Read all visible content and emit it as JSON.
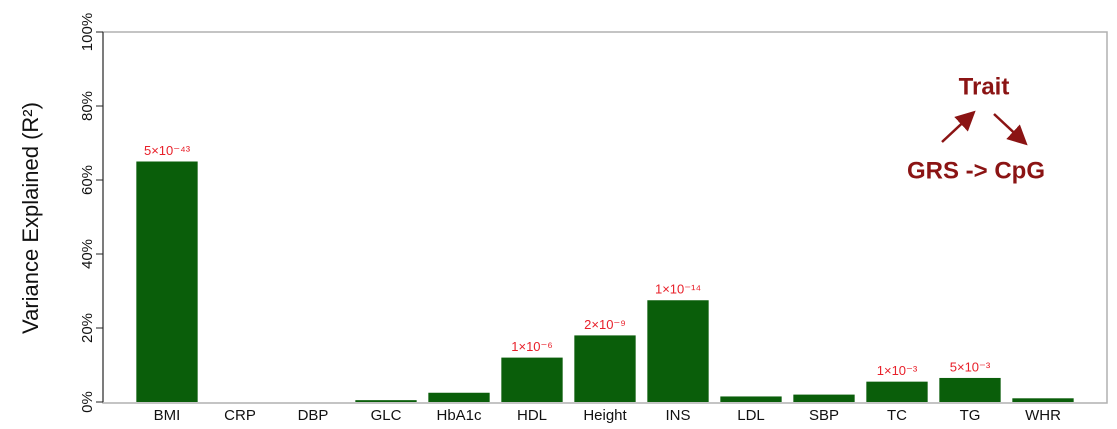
{
  "chart_data": {
    "type": "bar",
    "y_label": "Variance Explained (R²)",
    "categories": [
      "BMI",
      "CRP",
      "DBP",
      "GLC",
      "HbA1c",
      "HDL",
      "Height",
      "INS",
      "LDL",
      "SBP",
      "TC",
      "TG",
      "WHR"
    ],
    "values": [
      65,
      0,
      0,
      0.5,
      2.5,
      12,
      18,
      27.5,
      1.5,
      2,
      5.5,
      6.5,
      1
    ],
    "p_values": [
      "5×10⁻⁴³",
      null,
      null,
      null,
      null,
      "1×10⁻⁶",
      "2×10⁻⁹",
      "1×10⁻¹⁴",
      null,
      null,
      "1×10⁻³",
      "5×10⁻³",
      null
    ],
    "color": "#0a5e0a",
    "ylim": [
      0,
      100
    ],
    "yticks": [
      {
        "value": 0,
        "label": "0%"
      },
      {
        "value": 20,
        "label": "20%"
      },
      {
        "value": 40,
        "label": "40%"
      },
      {
        "value": 60,
        "label": "60%"
      },
      {
        "value": 80,
        "label": "80%"
      },
      {
        "value": 100,
        "label": "100%"
      }
    ],
    "diagram": {
      "top": "Trait",
      "bottom": "GRS -> CpG"
    }
  }
}
